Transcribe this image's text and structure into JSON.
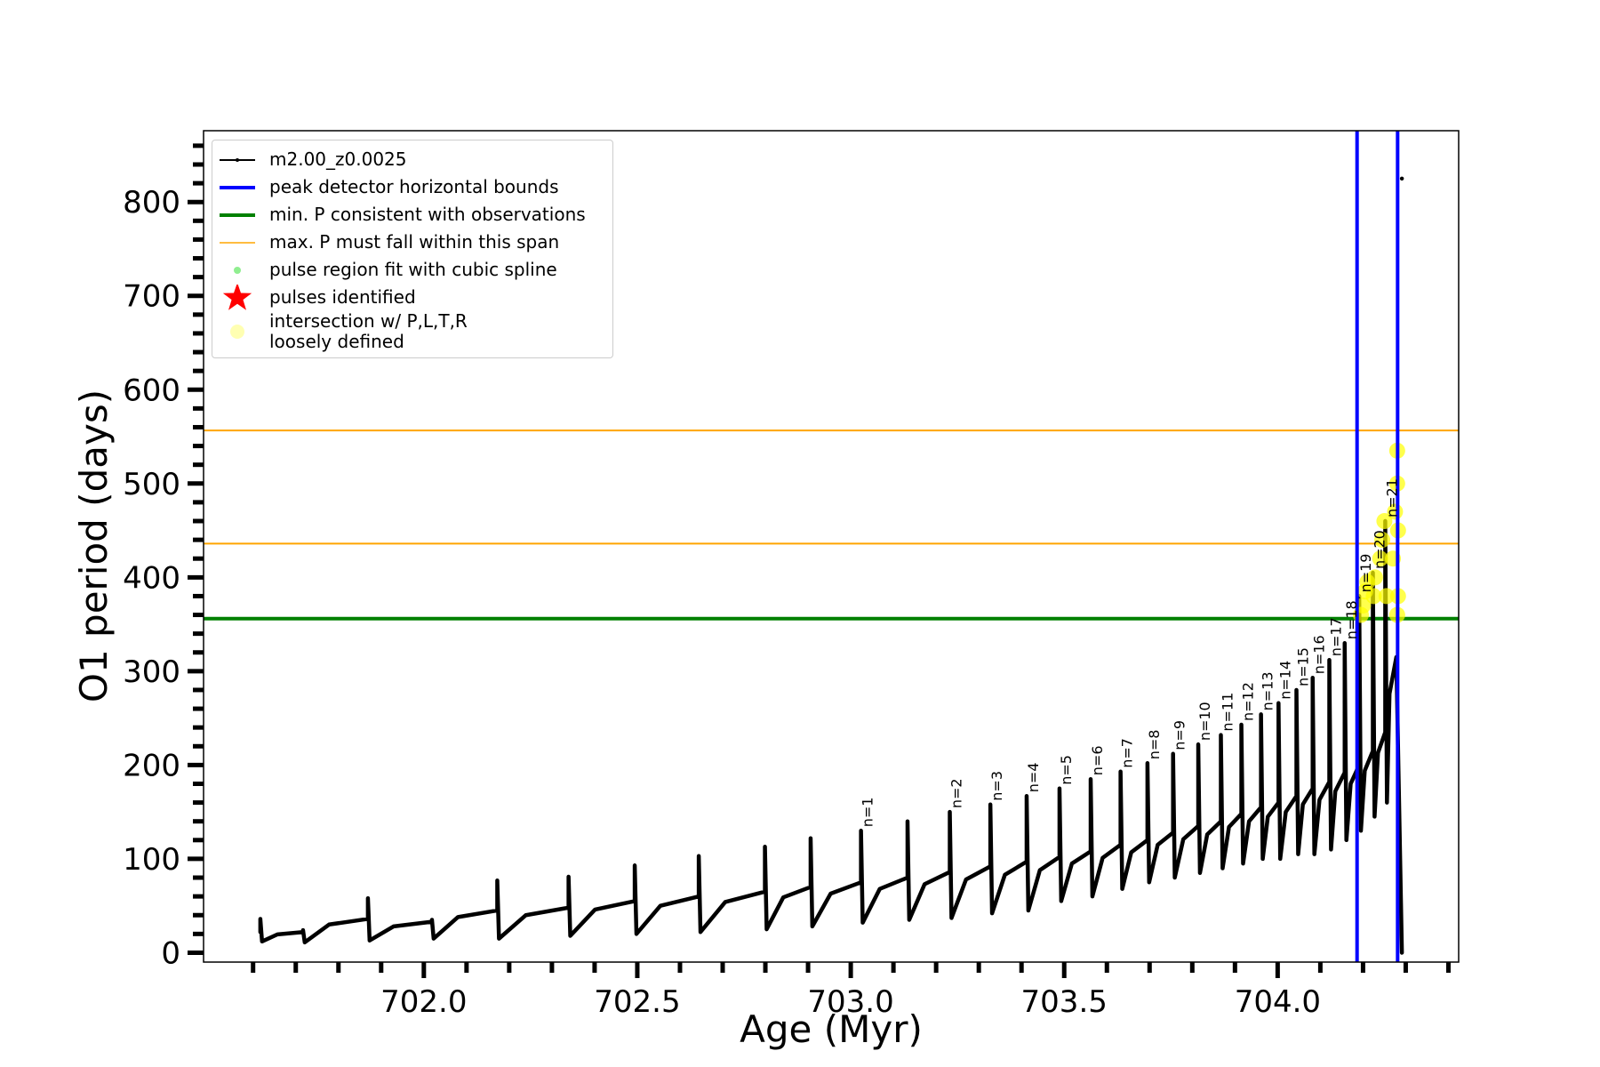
{
  "chart_data": {
    "type": "line",
    "xlabel": "Age (Myr)",
    "ylabel": "O1 period (days)",
    "xlim": [
      701.484,
      704.424
    ],
    "ylim": [
      -10,
      876
    ],
    "xticks": [
      {
        "value": 702,
        "label": "702.0"
      },
      {
        "value": 702.5,
        "label": "702.5"
      },
      {
        "value": 703,
        "label": "703.0"
      },
      {
        "value": 703.5,
        "label": "703.5"
      },
      {
        "value": 704,
        "label": "704.0"
      }
    ],
    "xminor_ticks": [
      701.6,
      701.7,
      701.8,
      701.9,
      702.1,
      702.2,
      702.3,
      702.4,
      702.6,
      702.7,
      702.8,
      702.9,
      703.1,
      703.2,
      703.3,
      703.4,
      703.6,
      703.7,
      703.8,
      703.9,
      704.1,
      704.2,
      704.3,
      704.4
    ],
    "yticks": [
      0,
      100,
      200,
      300,
      400,
      500,
      600,
      700,
      800
    ],
    "yminor_ticks": [
      20,
      40,
      60,
      80,
      120,
      140,
      160,
      180,
      220,
      240,
      260,
      280,
      320,
      340,
      360,
      380,
      420,
      440,
      460,
      480,
      520,
      540,
      560,
      580,
      620,
      640,
      660,
      680,
      720,
      740,
      760,
      780,
      820,
      840,
      860
    ],
    "legend": "upper left",
    "series": [
      {
        "name": "m2.00_z0.0025",
        "type": "line",
        "color": "#000000",
        "x": [
          701.617,
          701.617,
          701.621,
          701.657,
          701.717,
          701.717,
          701.721,
          701.778,
          701.869,
          701.869,
          701.873,
          701.929,
          702.019,
          702.019,
          702.023,
          702.08,
          702.172,
          702.172,
          702.176,
          702.239,
          702.339,
          702.339,
          702.343,
          702.401,
          702.494,
          702.494,
          702.498,
          702.554,
          702.644,
          702.644,
          702.648,
          702.706,
          702.799,
          702.799,
          702.803,
          702.842,
          702.906,
          702.906,
          702.91,
          702.953,
          703.024,
          703.024,
          703.028,
          703.068,
          703.133,
          703.133,
          703.137,
          703.173,
          703.232,
          703.232,
          703.236,
          703.27,
          703.327,
          703.327,
          703.331,
          703.361,
          703.412,
          703.412,
          703.416,
          703.443,
          703.489,
          703.489,
          703.493,
          703.518,
          703.562,
          703.562,
          703.566,
          703.59,
          703.632,
          703.632,
          703.636,
          703.657,
          703.695,
          703.695,
          703.699,
          703.719,
          703.755,
          703.755,
          703.759,
          703.779,
          703.814,
          703.814,
          703.818,
          703.835,
          703.867,
          703.867,
          703.871,
          703.886,
          703.915,
          703.915,
          703.919,
          703.933,
          703.961,
          703.961,
          703.965,
          703.977,
          704.002,
          704.002,
          704.006,
          704.019,
          704.044,
          704.044,
          704.048,
          704.059,
          704.082,
          704.082,
          704.086,
          704.098,
          704.121,
          704.121,
          704.125,
          704.135,
          704.157,
          704.157,
          704.161,
          704.171,
          704.191,
          704.191,
          704.195,
          704.204,
          704.223,
          704.223,
          704.227,
          704.235,
          704.252,
          704.252,
          704.256,
          704.262,
          704.278,
          704.291,
          704.291,
          704.291
        ],
        "values": [
          22,
          36,
          12,
          19.5,
          22,
          24,
          11,
          30,
          36,
          58,
          13,
          28,
          33,
          35,
          15,
          38,
          45,
          77,
          15,
          40,
          48,
          81,
          18,
          46,
          55,
          93,
          20,
          50,
          60,
          103,
          22,
          54,
          65,
          113,
          25,
          59,
          70,
          122,
          28,
          63,
          75,
          130,
          32,
          68,
          80,
          140,
          35,
          73,
          86,
          150,
          37,
          78,
          92,
          158,
          42,
          83,
          97,
          167,
          45,
          88,
          102,
          175,
          55,
          95,
          108,
          185,
          60,
          101,
          115,
          193,
          68,
          107,
          120,
          202,
          75,
          115,
          128,
          212,
          80,
          121,
          135,
          222,
          85,
          126,
          140,
          232,
          90,
          134,
          148,
          243,
          95,
          140,
          155,
          254,
          100,
          145,
          160,
          266,
          100,
          150,
          167,
          280,
          105,
          158,
          175,
          293,
          105,
          163,
          182,
          312,
          110,
          172,
          192,
          330,
          120,
          180,
          200,
          380,
          130,
          194,
          215,
          405,
          145,
          213,
          235,
          460,
          160,
          276,
          315,
          0,
          null,
          825
        ]
      },
      {
        "name": "peak detector horizontal bounds",
        "type": "vline",
        "color": "#0000ff",
        "values": [
          704.186,
          704.281
        ]
      },
      {
        "name": "min. P consistent with observations",
        "type": "hline",
        "color": "#008000",
        "values": [
          356
        ]
      },
      {
        "name": "max. P must fall within this span",
        "type": "hline",
        "color": "#ffa500",
        "values": [
          436,
          556.5
        ]
      },
      {
        "name": "pulse region fit with cubic spline",
        "type": "scatter",
        "marker": "dot",
        "color": "#90ee90",
        "x": [],
        "values": []
      },
      {
        "name": "pulses identified",
        "type": "scatter",
        "marker": "star",
        "color": "#ff0000",
        "x": [],
        "values": []
      },
      {
        "name": "intersection w/ P,L,T,R\nloosely defined",
        "type": "scatter",
        "marker": "blob",
        "color": "#ffff00",
        "x": [
          704.195,
          704.2,
          704.205,
          704.21,
          704.225,
          704.228,
          704.24,
          704.245,
          704.25,
          704.255,
          704.27,
          704.275,
          704.28,
          704.28,
          704.282,
          704.282,
          704.28
        ],
        "values": [
          360,
          370,
          385,
          395,
          380,
          400,
          420,
          440,
          460,
          380,
          420,
          470,
          500,
          535,
          450,
          380,
          360
        ]
      }
    ],
    "annotations": [
      {
        "text": "n=1",
        "x": 703.024,
        "y": 130
      },
      {
        "text": "n=2",
        "x": 703.232,
        "y": 150
      },
      {
        "text": "n=3",
        "x": 703.327,
        "y": 158
      },
      {
        "text": "n=4",
        "x": 703.412,
        "y": 167
      },
      {
        "text": "n=5",
        "x": 703.489,
        "y": 175
      },
      {
        "text": "n=6",
        "x": 703.562,
        "y": 185
      },
      {
        "text": "n=7",
        "x": 703.632,
        "y": 193
      },
      {
        "text": "n=8",
        "x": 703.695,
        "y": 202
      },
      {
        "text": "n=9",
        "x": 703.755,
        "y": 212
      },
      {
        "text": "n=10",
        "x": 703.814,
        "y": 222
      },
      {
        "text": "n=11",
        "x": 703.867,
        "y": 232
      },
      {
        "text": "n=12",
        "x": 703.915,
        "y": 243
      },
      {
        "text": "n=13",
        "x": 703.961,
        "y": 254
      },
      {
        "text": "n=14",
        "x": 704.002,
        "y": 266
      },
      {
        "text": "n=15",
        "x": 704.044,
        "y": 280
      },
      {
        "text": "n=16",
        "x": 704.082,
        "y": 293
      },
      {
        "text": "n=17",
        "x": 704.121,
        "y": 312
      },
      {
        "text": "n=18",
        "x": 704.157,
        "y": 330
      },
      {
        "text": "n=19",
        "x": 704.191,
        "y": 380
      },
      {
        "text": "n=20",
        "x": 704.223,
        "y": 405
      },
      {
        "text": "n=21",
        "x": 704.252,
        "y": 460
      }
    ]
  }
}
